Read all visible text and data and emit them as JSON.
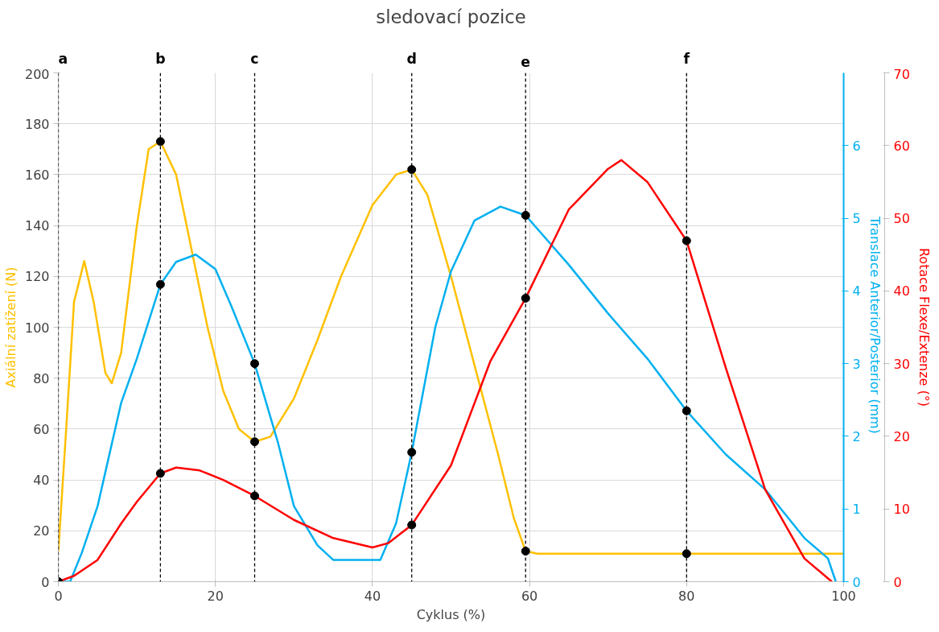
{
  "chart_data": {
    "type": "line",
    "title": "sledovací pozice",
    "xlabel": "Cyklus (%)",
    "ylabel": "Axiální zatížení (N)",
    "y2label": "Translace Anterior/Posterior  (mm)",
    "y3label": "Rotace Flexe/Extenze (°)",
    "xlim": [
      0,
      100
    ],
    "xticks": [
      0,
      20,
      40,
      60,
      80,
      100
    ],
    "ylim": [
      0,
      200
    ],
    "yticks": [
      0,
      20,
      40,
      60,
      80,
      100,
      120,
      140,
      160,
      180,
      200
    ],
    "y2lim": [
      0,
      7
    ],
    "y2ticks": [
      0,
      1,
      2,
      3,
      4,
      5,
      6
    ],
    "y3lim": [
      0,
      70
    ],
    "y3ticks": [
      0,
      10,
      20,
      30,
      40,
      50,
      60,
      70
    ],
    "grid": true,
    "line_style": "solid",
    "marker": "none",
    "series": [
      {
        "color": "#ffc000",
        "x": [
          0,
          1,
          2,
          3.3,
          4.5,
          6,
          6.8,
          8,
          10,
          11.5,
          13,
          15,
          17,
          19,
          21,
          23,
          25,
          27,
          30,
          33,
          36,
          40,
          43,
          45,
          47,
          50,
          53,
          56,
          58,
          59.5,
          61,
          80,
          100
        ],
        "values": [
          12,
          60,
          110,
          126,
          110,
          82,
          78,
          90,
          140,
          170,
          173,
          160,
          130,
          100,
          75,
          60,
          55,
          57,
          72,
          95,
          120,
          148,
          160,
          162,
          152,
          120,
          85,
          50,
          25,
          12,
          11,
          11,
          11
        ]
      },
      {
        "color": "#00b0f0",
        "axis": "y2",
        "x": [
          0,
          1.5,
          3,
          5,
          8,
          10,
          13,
          15,
          17.5,
          20,
          22,
          25,
          28,
          30,
          33,
          35,
          38,
          41,
          43,
          45,
          48,
          50,
          53,
          56.3,
          59.5,
          65,
          70,
          75,
          80,
          85,
          90,
          95,
          98,
          99
        ],
        "values": [
          0,
          0,
          0.4,
          1.04,
          2.46,
          3.07,
          4.09,
          4.4,
          4.5,
          4.3,
          3.8,
          3.0,
          1.9,
          1.04,
          0.5,
          0.3,
          0.3,
          0.3,
          0.8,
          1.78,
          3.5,
          4.27,
          4.97,
          5.16,
          5.04,
          4.36,
          3.69,
          3.07,
          2.35,
          1.75,
          1.27,
          0.6,
          0.32,
          0
        ]
      },
      {
        "color": "#ff0000",
        "axis": "y3",
        "x": [
          0,
          2,
          5,
          8,
          10,
          13,
          15,
          18,
          21,
          25,
          30,
          35,
          40,
          42,
          45,
          50,
          55,
          59.5,
          65,
          70,
          71.7,
          75,
          80,
          85,
          90,
          95,
          98.5
        ],
        "values": [
          0,
          0.8,
          3,
          8,
          11,
          14.9,
          15.7,
          15.3,
          14,
          11.8,
          8.5,
          6.0,
          4.7,
          5.3,
          7.8,
          16,
          30.3,
          39,
          51.2,
          56.8,
          58,
          55,
          46.9,
          29.4,
          12.7,
          3.2,
          0
        ]
      },
      {
        "type": "scatter",
        "color": "#000000",
        "marker": "circle",
        "x": [
          13,
          25,
          45,
          59.5,
          80
        ],
        "values": [
          173,
          55,
          162,
          12,
          11
        ]
      },
      {
        "type": "scatter",
        "color": "#000000",
        "marker": "circle",
        "axis": "y2",
        "x": [
          13,
          25,
          45,
          59.5,
          80
        ],
        "values": [
          4.09,
          3.0,
          1.78,
          5.04,
          2.35
        ]
      },
      {
        "type": "scatter",
        "color": "#000000",
        "marker": "circle",
        "axis": "y3",
        "x": [
          0,
          13,
          25,
          45,
          59.5,
          80
        ],
        "values": [
          0,
          14.9,
          11.8,
          7.8,
          39,
          46.9
        ]
      }
    ],
    "ref_lines": [
      {
        "axis": "x",
        "value": 0,
        "label": "a",
        "color": "#000000",
        "line_style": "dashed"
      },
      {
        "axis": "x",
        "value": 13,
        "label": "b",
        "color": "#000000",
        "line_style": "dashed"
      },
      {
        "axis": "x",
        "value": 25,
        "label": "c",
        "color": "#000000",
        "line_style": "dashed"
      },
      {
        "axis": "x",
        "value": 45,
        "label": "d",
        "color": "#000000",
        "line_style": "dashed"
      },
      {
        "axis": "x",
        "value": 59.5,
        "label": "e",
        "color": "#000000",
        "line_style": "dashed"
      },
      {
        "axis": "x",
        "value": 80,
        "label": "f",
        "color": "#000000",
        "line_style": "dashed"
      }
    ]
  }
}
